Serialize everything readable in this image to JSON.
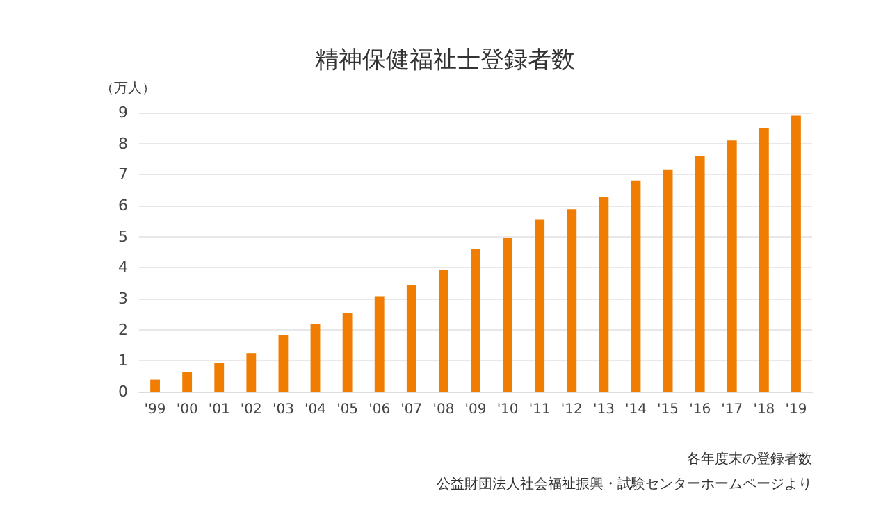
{
  "chart_data": {
    "type": "bar",
    "title": "精神保健福祉士登録者数",
    "ylabel": "（万人）",
    "categories": [
      "'99",
      "'00",
      "'01",
      "'02",
      "'03",
      "'04",
      "'05",
      "'06",
      "'07",
      "'08",
      "'09",
      "'10",
      "'11",
      "'12",
      "'13",
      "'14",
      "'15",
      "'16",
      "'17",
      "'18",
      "'19"
    ],
    "values": [
      0.39,
      0.64,
      0.92,
      1.25,
      1.82,
      2.17,
      2.53,
      3.08,
      3.44,
      3.92,
      4.6,
      4.97,
      5.54,
      5.88,
      6.29,
      6.81,
      7.15,
      7.61,
      8.1,
      8.51,
      8.9
    ],
    "color": "#f07c00",
    "ylim": [
      0,
      9
    ],
    "yticks": [
      0,
      1,
      2,
      3,
      4,
      5,
      6,
      7,
      8,
      9
    ],
    "grid": "y",
    "annotations": [
      "各年度末の登録者数",
      "公益財団法人社会福祉振興・試験センターホームページより"
    ]
  }
}
